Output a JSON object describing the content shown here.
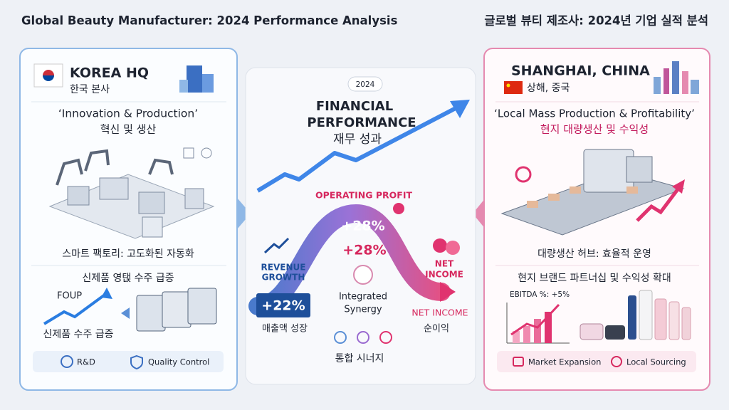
{
  "header": {
    "title_en": "Global Beauty Manufacturer: 2024 Performance Analysis",
    "title_ko": "글로벌 뷰티 제조사: 2024년 기업 실적 분석"
  },
  "korea": {
    "name": "KOREA HQ",
    "name_ko": "한국 본사",
    "tagline": "‘Innovation & Production’",
    "tagline_ko": "혁신 및 생산",
    "caption": "스마트 팩토리: 고도화된 자동화",
    "caption2": "신제품 영탡 수주 급증",
    "foup": "FOUP",
    "orders": "신제품 수주 급증",
    "footer": [
      "R&D",
      "Quality Control"
    ]
  },
  "center": {
    "badge": "2024",
    "title_line1": "FINANCIAL",
    "title_line2": "PERFORMANCE",
    "title_ko": "재무 성과",
    "operating_profit": "OPERATING PROFIT",
    "op_value": "+28%",
    "op_value2": "+28%",
    "revenue_line1": "REVENUE",
    "revenue_line2": "GROWTH",
    "revenue_value": "+22%",
    "revenue_ko": "매출액 성장",
    "synergy_line1": "Integrated",
    "synergy_line2": "Synergy",
    "net_line1": "NET",
    "net_line2": "INCOME",
    "net_income": "NET INCOME",
    "net_ko": "순이익",
    "synergy_ko": "통합 시너지"
  },
  "china": {
    "name": "SHANGHAI, CHINA",
    "name_ko": "상해, 중국",
    "tagline": "‘Local Mass Production & Profitability’",
    "tagline_ko": "현지 대량생산 및 수익성",
    "caption": "대량생산 허브: 효율적 운영",
    "caption2": "현지 브랜드 파트너십 및 수익성 확대",
    "ebitda": "EBITDA %: +5%",
    "footer": [
      "Market Expansion",
      "Local Sourcing"
    ]
  }
}
